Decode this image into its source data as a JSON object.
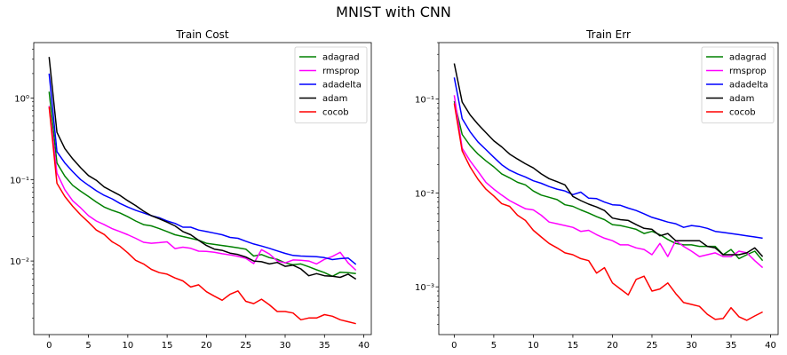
{
  "suptitle": "MNIST with CNN",
  "chart_data": [
    {
      "type": "line",
      "title": "Train Cost",
      "xlabel": "",
      "ylabel": "",
      "yscale": "log",
      "xlim": [
        -1.95,
        40.95
      ],
      "ylim": [
        0.00125,
        4.8
      ],
      "xticks": [
        0,
        5,
        10,
        15,
        20,
        25,
        30,
        35,
        40
      ],
      "yticks": [
        {
          "value": 1,
          "label": "10⁰"
        },
        {
          "value": 0.1,
          "label": "10⁻¹"
        },
        {
          "value": 0.01,
          "label": "10⁻²"
        }
      ],
      "grid": false,
      "legend_position": "top-right",
      "series": [
        {
          "name": "adagrad",
          "color": "#008000",
          "values": [
            1.2,
            0.16,
            0.11,
            0.085,
            0.072,
            0.062,
            0.053,
            0.046,
            0.042,
            0.039,
            0.035,
            0.031,
            0.028,
            0.027,
            0.025,
            0.023,
            0.021,
            0.02,
            0.019,
            0.018,
            0.0165,
            0.016,
            0.0155,
            0.015,
            0.0145,
            0.014,
            0.0115,
            0.012,
            0.011,
            0.0105,
            0.0095,
            0.009,
            0.0092,
            0.0085,
            0.0078,
            0.0072,
            0.0065,
            0.0073,
            0.0072,
            0.007
          ]
        },
        {
          "name": "rmsprop",
          "color": "#ff00ff",
          "values": [
            0.8,
            0.12,
            0.075,
            0.055,
            0.045,
            0.036,
            0.031,
            0.028,
            0.025,
            0.023,
            0.021,
            0.019,
            0.017,
            0.0165,
            0.0168,
            0.0172,
            0.0142,
            0.0148,
            0.0143,
            0.0132,
            0.0131,
            0.0128,
            0.0123,
            0.0119,
            0.0114,
            0.0108,
            0.0093,
            0.0138,
            0.0122,
            0.01,
            0.0095,
            0.0103,
            0.0102,
            0.01,
            0.0092,
            0.0105,
            0.0114,
            0.0128,
            0.0095,
            0.0077
          ]
        },
        {
          "name": "adadelta",
          "color": "#0000ff",
          "values": [
            2.0,
            0.22,
            0.16,
            0.125,
            0.1,
            0.085,
            0.073,
            0.064,
            0.058,
            0.051,
            0.046,
            0.042,
            0.039,
            0.036,
            0.034,
            0.031,
            0.029,
            0.026,
            0.026,
            0.024,
            0.023,
            0.022,
            0.021,
            0.0195,
            0.019,
            0.0175,
            0.0162,
            0.0153,
            0.0143,
            0.0133,
            0.0124,
            0.0117,
            0.0115,
            0.0114,
            0.0113,
            0.011,
            0.0104,
            0.0107,
            0.0109,
            0.0091
          ]
        },
        {
          "name": "adam",
          "color": "#000000",
          "values": [
            3.2,
            0.38,
            0.24,
            0.18,
            0.14,
            0.112,
            0.098,
            0.081,
            0.072,
            0.064,
            0.055,
            0.048,
            0.041,
            0.036,
            0.033,
            0.03,
            0.027,
            0.023,
            0.021,
            0.018,
            0.0155,
            0.014,
            0.0135,
            0.0125,
            0.012,
            0.0112,
            0.01,
            0.0098,
            0.0092,
            0.0096,
            0.0086,
            0.0089,
            0.008,
            0.0066,
            0.007,
            0.0066,
            0.0065,
            0.0063,
            0.0069,
            0.006
          ]
        },
        {
          "name": "cocob",
          "color": "#ff0000",
          "values": [
            0.78,
            0.09,
            0.062,
            0.047,
            0.037,
            0.03,
            0.024,
            0.0212,
            0.0173,
            0.0152,
            0.0126,
            0.0102,
            0.0092,
            0.0079,
            0.0072,
            0.0069,
            0.0062,
            0.0057,
            0.0048,
            0.0051,
            0.0042,
            0.0037,
            0.0033,
            0.0039,
            0.0043,
            0.0032,
            0.003,
            0.0034,
            0.0029,
            0.0024,
            0.0024,
            0.0023,
            0.0019,
            0.002,
            0.002,
            0.0022,
            0.0021,
            0.0019,
            0.0018,
            0.0017
          ]
        }
      ]
    },
    {
      "type": "line",
      "title": "Train Err",
      "xlabel": "",
      "ylabel": "",
      "yscale": "log",
      "xlim": [
        -1.95,
        40.95
      ],
      "ylim": [
        0.00031,
        0.4
      ],
      "xticks": [
        0,
        5,
        10,
        15,
        20,
        25,
        30,
        35,
        40
      ],
      "yticks": [
        {
          "value": 0.1,
          "label": "10⁻¹"
        },
        {
          "value": 0.01,
          "label": "10⁻²"
        },
        {
          "value": 0.001,
          "label": "10⁻³"
        }
      ],
      "grid": false,
      "legend_position": "top-right",
      "series": [
        {
          "name": "adagrad",
          "color": "#008000",
          "values": [
            0.095,
            0.042,
            0.032,
            0.026,
            0.022,
            0.019,
            0.016,
            0.0145,
            0.013,
            0.0122,
            0.0105,
            0.0095,
            0.009,
            0.0085,
            0.0075,
            0.0072,
            0.0066,
            0.0061,
            0.0056,
            0.0052,
            0.0046,
            0.0045,
            0.0043,
            0.0041,
            0.0037,
            0.0039,
            0.0036,
            0.0032,
            0.0029,
            0.0028,
            0.0028,
            0.0027,
            0.0027,
            0.0027,
            0.0022,
            0.0025,
            0.002,
            0.0022,
            0.0024,
            0.0019
          ]
        },
        {
          "name": "rmsprop",
          "color": "#ff00ff",
          "values": [
            0.11,
            0.03,
            0.022,
            0.017,
            0.013,
            0.011,
            0.0095,
            0.0083,
            0.0075,
            0.0068,
            0.0066,
            0.0058,
            0.0049,
            0.0047,
            0.0045,
            0.0043,
            0.0039,
            0.004,
            0.0036,
            0.0033,
            0.0031,
            0.0028,
            0.0028,
            0.0026,
            0.0025,
            0.0022,
            0.0029,
            0.0021,
            0.0031,
            0.0027,
            0.0024,
            0.0021,
            0.0022,
            0.0023,
            0.0021,
            0.0021,
            0.0024,
            0.0023,
            0.0019,
            0.0016
          ]
        },
        {
          "name": "adadelta",
          "color": "#0000ff",
          "values": [
            0.17,
            0.062,
            0.045,
            0.035,
            0.029,
            0.024,
            0.02,
            0.0175,
            0.016,
            0.0148,
            0.0135,
            0.0127,
            0.0117,
            0.011,
            0.0105,
            0.0096,
            0.0102,
            0.0088,
            0.0087,
            0.008,
            0.0075,
            0.0074,
            0.0069,
            0.0065,
            0.006,
            0.0055,
            0.0052,
            0.0049,
            0.0047,
            0.0043,
            0.0045,
            0.0044,
            0.0042,
            0.0039,
            0.0038,
            0.0037,
            0.0036,
            0.0035,
            0.0034,
            0.0033
          ]
        },
        {
          "name": "adam",
          "color": "#000000",
          "values": [
            0.24,
            0.093,
            0.068,
            0.054,
            0.044,
            0.036,
            0.031,
            0.026,
            0.023,
            0.0205,
            0.0185,
            0.016,
            0.0142,
            0.0132,
            0.0122,
            0.0092,
            0.0083,
            0.0076,
            0.0071,
            0.0065,
            0.0054,
            0.0052,
            0.0051,
            0.0046,
            0.0042,
            0.0041,
            0.0035,
            0.0037,
            0.0031,
            0.0031,
            0.0031,
            0.0031,
            0.0027,
            0.0026,
            0.0022,
            0.0022,
            0.0022,
            0.0023,
            0.0026,
            0.0021
          ]
        },
        {
          "name": "cocob",
          "color": "#ff0000",
          "values": [
            0.09,
            0.028,
            0.019,
            0.014,
            0.011,
            0.0093,
            0.0077,
            0.0072,
            0.0058,
            0.0051,
            0.004,
            0.0034,
            0.0029,
            0.0026,
            0.0023,
            0.0022,
            0.002,
            0.0019,
            0.0014,
            0.0016,
            0.0011,
            0.00095,
            0.00082,
            0.0012,
            0.0013,
            0.0009,
            0.00095,
            0.0011,
            0.00085,
            0.00068,
            0.00065,
            0.00062,
            0.00051,
            0.00045,
            0.00046,
            0.0006,
            0.00048,
            0.00044,
            0.00049,
            0.00054
          ]
        }
      ]
    }
  ]
}
